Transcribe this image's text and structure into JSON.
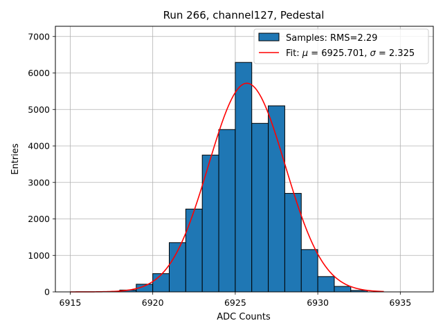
{
  "chart_data": {
    "type": "bar",
    "title": "Run 266, channel127, Pedestal",
    "xlabel": "ADC Counts",
    "ylabel": "Entries",
    "xlim": [
      6914.1,
      6937.0
    ],
    "ylim": [
      0,
      7280
    ],
    "xticks": [
      6915,
      6920,
      6925,
      6930,
      6935
    ],
    "yticks": [
      0,
      1000,
      2000,
      3000,
      4000,
      5000,
      6000,
      7000
    ],
    "grid": true,
    "legend_position": "top-right",
    "histogram": {
      "name": "Samples: RMS=2.29",
      "color": "#1f77b4",
      "edgecolor": "#000000",
      "bin_edges": [
        6915.0,
        6916.0,
        6917.0,
        6918.0,
        6919.0,
        6920.0,
        6921.0,
        6922.0,
        6923.0,
        6924.0,
        6925.0,
        6926.0,
        6927.0,
        6928.0,
        6929.0,
        6930.0,
        6931.0,
        6932.0,
        6933.0
      ],
      "counts": [
        0,
        0,
        0,
        50,
        210,
        500,
        1350,
        2270,
        3750,
        4450,
        6290,
        4620,
        5100,
        2700,
        1160,
        420,
        150,
        40
      ]
    },
    "fit": {
      "name_prefix": "Fit: ",
      "mu_symbol": "μ",
      "mu_text": " = 6925.701, ",
      "sigma_symbol": "σ",
      "sigma_text": " = 2.325",
      "color": "#ff0000",
      "mu": 6925.701,
      "sigma": 2.325,
      "amplitude": 5720,
      "x_range": [
        6915.0,
        6934.0
      ]
    }
  }
}
